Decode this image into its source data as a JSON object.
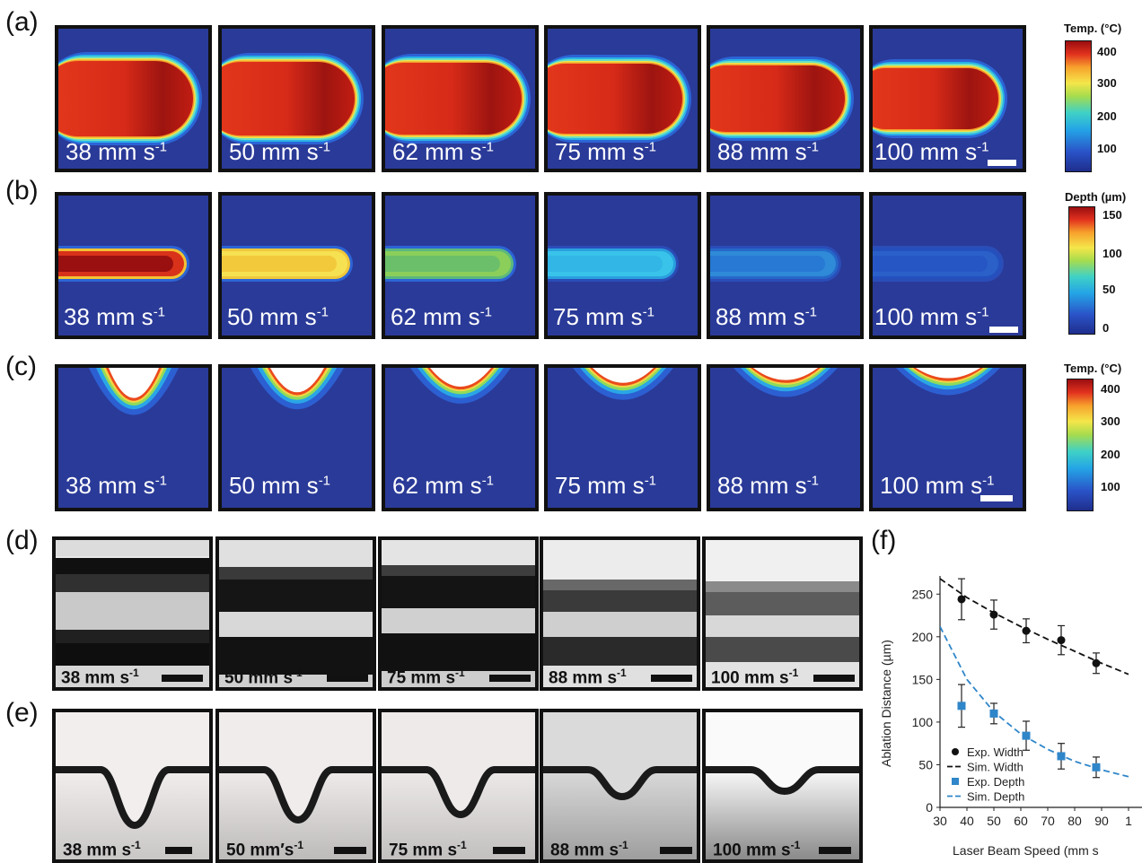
{
  "rows": {
    "a": {
      "label": "(a)"
    },
    "b": {
      "label": "(b)"
    },
    "c": {
      "label": "(c)"
    },
    "d": {
      "label": "(d)"
    },
    "e": {
      "label": "(e)"
    },
    "f": {
      "label": "(f)"
    }
  },
  "speeds_sim": [
    "38 mm s",
    "50 mm s",
    "62 mm s",
    "75 mm s",
    "88 mm s",
    "100 mm s"
  ],
  "speeds_exp": [
    "38 mm s",
    "50 mm s",
    "75 mm s",
    "88 mm s",
    "100 mm s"
  ],
  "speeds_exp_e": [
    "38 mm s",
    "50 mm′s",
    "75 mm s",
    "88 mm s",
    "100 mm s"
  ],
  "exponent": "-1",
  "colorbars": {
    "temp": {
      "title": "Temp. (°C)",
      "ticks": [
        "400",
        "300",
        "200",
        "100"
      ]
    },
    "depth": {
      "title": "Depth (µm)",
      "ticks": [
        "150",
        "100",
        "50",
        "0"
      ]
    },
    "temp_c": {
      "title": "Temp. (°C)",
      "ticks": [
        "400",
        "300",
        "200",
        "100"
      ]
    }
  },
  "chart_data": {
    "type": "scatter",
    "xlabel": "Laser Beam Speed (mm s",
    "ylabel": "Ablation Distance (µm)",
    "xlim": [
      30,
      100
    ],
    "ylim": [
      0,
      265
    ],
    "xticks": [
      "30",
      "40",
      "50",
      "60",
      "70",
      "80",
      "90",
      "1"
    ],
    "yticks": [
      "0",
      "50",
      "100",
      "150",
      "200",
      "250"
    ],
    "series": [
      {
        "name": "Exp. Width",
        "kind": "points",
        "color": "#111111",
        "x": [
          38,
          50,
          62,
          75,
          88
        ],
        "y": [
          244,
          226,
          207,
          196,
          169
        ],
        "err": [
          24,
          17,
          14,
          17,
          12
        ]
      },
      {
        "name": "Sim. Width",
        "kind": "dashed-line",
        "color": "#111111",
        "x": [
          30,
          40,
          50,
          60,
          70,
          80,
          90,
          100
        ],
        "y": [
          268,
          246,
          228,
          212,
          197,
          183,
          169,
          156
        ]
      },
      {
        "name": "Exp. Depth",
        "kind": "points",
        "color": "#2f86c9",
        "x": [
          38,
          50,
          62,
          75,
          88
        ],
        "y": [
          119,
          110,
          84,
          60,
          47
        ],
        "err": [
          25,
          12,
          17,
          15,
          12
        ]
      },
      {
        "name": "Sim. Depth",
        "kind": "dashed-line",
        "color": "#2f86c9",
        "x": [
          30,
          40,
          50,
          60,
          70,
          80,
          90,
          100
        ],
        "y": [
          212,
          150,
          112,
          86,
          68,
          54,
          44,
          36
        ]
      }
    ],
    "legend": [
      "Exp. Width",
      "Sim. Width",
      "Exp. Depth",
      "Sim. Depth"
    ],
    "legend_position": "bottom-left"
  }
}
